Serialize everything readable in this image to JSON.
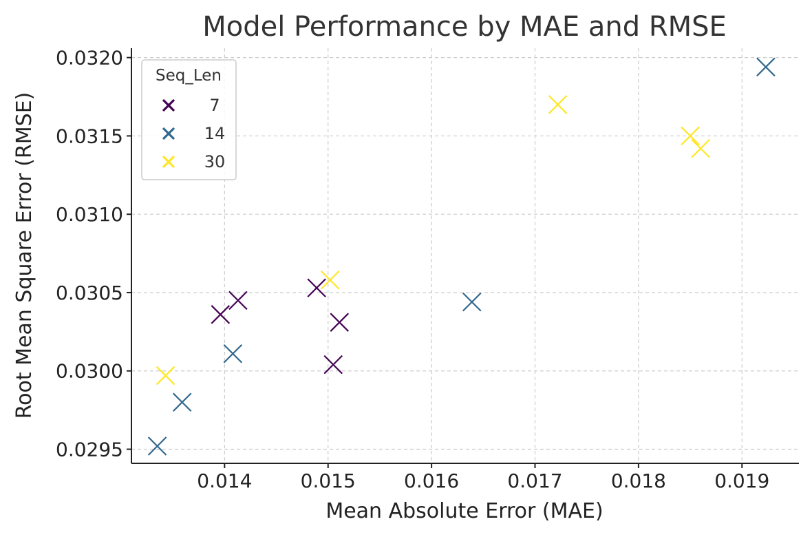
{
  "chart_data": {
    "type": "scatter",
    "title": "Model Performance by MAE and RMSE",
    "xlabel": "Mean Absolute Error (MAE)",
    "ylabel": "Root Mean Square Error (RMSE)",
    "xlim": [
      0.0131,
      0.01955
    ],
    "ylim": [
      0.02941,
      0.03206
    ],
    "xticks": [
      {
        "value": 0.014,
        "label": "0.014"
      },
      {
        "value": 0.015,
        "label": "0.015"
      },
      {
        "value": 0.016,
        "label": "0.016"
      },
      {
        "value": 0.017,
        "label": "0.017"
      },
      {
        "value": 0.018,
        "label": "0.018"
      },
      {
        "value": 0.019,
        "label": "0.019"
      }
    ],
    "yticks": [
      {
        "value": 0.0295,
        "label": "0.0295"
      },
      {
        "value": 0.03,
        "label": "0.0300"
      },
      {
        "value": 0.0305,
        "label": "0.0305"
      },
      {
        "value": 0.031,
        "label": "0.0310"
      },
      {
        "value": 0.0315,
        "label": "0.0315"
      },
      {
        "value": 0.032,
        "label": "0.0320"
      }
    ],
    "grid": true,
    "marker": "x",
    "legend": {
      "title": "Seq_Len",
      "placement": "top-left"
    },
    "series": [
      {
        "name": "7",
        "color": "#440154",
        "points": [
          {
            "x": 0.01396,
            "y": 0.03036
          },
          {
            "x": 0.01413,
            "y": 0.03045
          },
          {
            "x": 0.01489,
            "y": 0.03053
          },
          {
            "x": 0.01511,
            "y": 0.03031
          },
          {
            "x": 0.01505,
            "y": 0.03004
          }
        ]
      },
      {
        "name": "14",
        "color": "#31688e",
        "points": [
          {
            "x": 0.01335,
            "y": 0.02952
          },
          {
            "x": 0.01359,
            "y": 0.0298
          },
          {
            "x": 0.01408,
            "y": 0.03011
          },
          {
            "x": 0.01639,
            "y": 0.03044
          },
          {
            "x": 0.01923,
            "y": 0.03194
          }
        ]
      },
      {
        "name": "30",
        "color": "#fde725",
        "points": [
          {
            "x": 0.01343,
            "y": 0.02997
          },
          {
            "x": 0.01502,
            "y": 0.03058
          },
          {
            "x": 0.01722,
            "y": 0.0317
          },
          {
            "x": 0.0185,
            "y": 0.0315
          },
          {
            "x": 0.0186,
            "y": 0.03142
          }
        ]
      }
    ]
  }
}
